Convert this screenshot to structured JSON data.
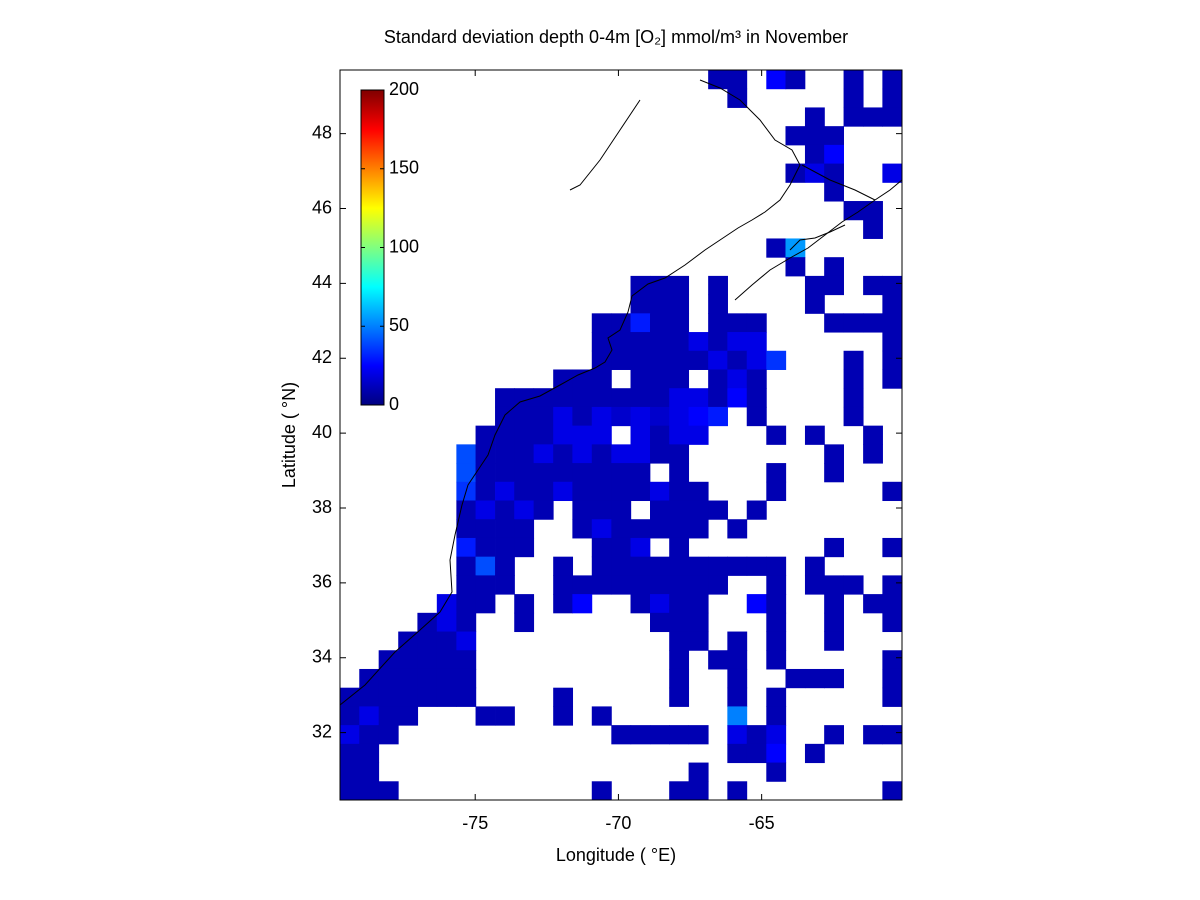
{
  "chart_data": {
    "type": "heatmap",
    "title": "Standard deviation depth 0-4m [O₂] mmol/m³ in November",
    "xlabel": "Longitude ( °E)",
    "ylabel": "Latitude ( °N)",
    "xlim": [
      -79.72,
      -60.1
    ],
    "ylim": [
      30.2,
      49.7
    ],
    "xticks": [
      -75,
      -70,
      -65
    ],
    "yticks": [
      32,
      34,
      36,
      38,
      40,
      42,
      44,
      46,
      48
    ],
    "colormap": "jet",
    "clim": [
      0,
      200
    ],
    "cticks": [
      0,
      50,
      100,
      150,
      200
    ],
    "x": [
      -79.38,
      -78.71,
      -78.03,
      -77.35,
      -76.68,
      -76.0,
      -75.32,
      -74.65,
      -73.97,
      -73.3,
      -72.62,
      -71.94,
      -71.27,
      -70.59,
      -69.91,
      -69.24,
      -68.56,
      -67.89,
      -67.21,
      -66.53,
      -65.86,
      -65.18,
      -64.5,
      -63.83,
      -63.15,
      -62.48,
      -61.8,
      -61.12,
      -60.45
    ],
    "y": [
      49.45,
      48.95,
      48.45,
      47.95,
      47.45,
      46.95,
      46.45,
      45.95,
      45.45,
      44.95,
      44.45,
      43.95,
      43.45,
      42.95,
      42.45,
      41.95,
      41.45,
      40.95,
      40.45,
      39.95,
      39.45,
      38.95,
      38.45,
      37.95,
      37.45,
      36.95,
      36.45,
      35.95,
      35.45,
      34.95,
      34.45,
      33.95,
      33.45,
      32.95,
      32.45,
      31.95,
      31.45,
      30.95,
      30.45
    ],
    "z": [
      [
        null,
        null,
        null,
        null,
        null,
        null,
        null,
        null,
        null,
        null,
        null,
        null,
        null,
        null,
        null,
        null,
        null,
        null,
        null,
        10,
        10,
        null,
        25,
        10,
        null,
        null,
        10,
        null,
        10
      ],
      [
        null,
        null,
        null,
        null,
        null,
        null,
        null,
        null,
        null,
        null,
        null,
        null,
        null,
        null,
        null,
        null,
        null,
        null,
        null,
        null,
        10,
        null,
        null,
        null,
        null,
        null,
        10,
        null,
        10
      ],
      [
        null,
        null,
        null,
        null,
        null,
        null,
        null,
        null,
        null,
        null,
        null,
        null,
        null,
        null,
        null,
        null,
        null,
        null,
        null,
        null,
        null,
        null,
        null,
        null,
        10,
        null,
        10,
        10,
        10
      ],
      [
        null,
        null,
        null,
        null,
        null,
        null,
        null,
        null,
        null,
        null,
        null,
        null,
        null,
        null,
        null,
        null,
        null,
        null,
        null,
        null,
        null,
        null,
        null,
        10,
        10,
        10,
        null,
        null,
        null
      ],
      [
        null,
        null,
        null,
        null,
        null,
        null,
        null,
        null,
        null,
        null,
        null,
        null,
        null,
        null,
        null,
        null,
        null,
        null,
        null,
        null,
        null,
        null,
        null,
        null,
        10,
        25,
        null,
        null,
        null
      ],
      [
        null,
        null,
        null,
        null,
        null,
        null,
        null,
        null,
        null,
        null,
        null,
        null,
        null,
        null,
        null,
        null,
        null,
        null,
        null,
        null,
        null,
        null,
        null,
        10,
        20,
        10,
        null,
        null,
        20
      ],
      [
        null,
        null,
        null,
        null,
        null,
        null,
        null,
        null,
        null,
        null,
        null,
        null,
        null,
        null,
        null,
        null,
        null,
        null,
        null,
        null,
        null,
        null,
        null,
        null,
        null,
        10,
        null,
        null,
        null
      ],
      [
        null,
        null,
        null,
        null,
        null,
        null,
        null,
        null,
        null,
        null,
        null,
        null,
        null,
        null,
        null,
        null,
        null,
        null,
        null,
        null,
        null,
        null,
        null,
        null,
        null,
        null,
        10,
        10,
        null
      ],
      [
        null,
        null,
        null,
        null,
        null,
        null,
        null,
        null,
        null,
        null,
        null,
        null,
        null,
        null,
        null,
        null,
        null,
        null,
        null,
        null,
        null,
        null,
        null,
        null,
        null,
        null,
        null,
        10,
        null
      ],
      [
        null,
        null,
        null,
        null,
        null,
        null,
        null,
        null,
        null,
        null,
        null,
        null,
        null,
        null,
        null,
        null,
        null,
        null,
        null,
        null,
        null,
        null,
        10,
        55,
        null,
        null,
        null,
        null,
        null
      ],
      [
        null,
        null,
        null,
        null,
        null,
        null,
        null,
        null,
        null,
        null,
        null,
        null,
        null,
        null,
        null,
        null,
        null,
        null,
        null,
        null,
        null,
        null,
        null,
        10,
        null,
        10,
        null,
        null,
        null
      ],
      [
        null,
        null,
        null,
        null,
        null,
        null,
        null,
        null,
        null,
        null,
        null,
        null,
        null,
        null,
        null,
        10,
        10,
        10,
        null,
        10,
        null,
        null,
        null,
        null,
        10,
        10,
        null,
        10,
        10
      ],
      [
        null,
        null,
        null,
        null,
        null,
        null,
        null,
        null,
        null,
        null,
        null,
        null,
        null,
        null,
        null,
        10,
        10,
        10,
        null,
        10,
        null,
        null,
        null,
        null,
        10,
        null,
        null,
        null,
        10
      ],
      [
        null,
        null,
        null,
        null,
        null,
        null,
        null,
        null,
        null,
        null,
        null,
        null,
        null,
        10,
        10,
        30,
        10,
        10,
        null,
        10,
        10,
        10,
        null,
        null,
        null,
        10,
        10,
        10,
        10
      ],
      [
        null,
        null,
        null,
        null,
        null,
        null,
        null,
        null,
        null,
        null,
        null,
        null,
        null,
        10,
        10,
        10,
        10,
        10,
        20,
        10,
        20,
        20,
        null,
        null,
        null,
        null,
        null,
        null,
        10
      ],
      [
        null,
        null,
        null,
        null,
        null,
        null,
        null,
        null,
        null,
        null,
        null,
        null,
        null,
        10,
        10,
        10,
        10,
        10,
        10,
        20,
        10,
        20,
        35,
        null,
        null,
        null,
        10,
        null,
        10
      ],
      [
        null,
        null,
        null,
        null,
        null,
        null,
        null,
        null,
        null,
        null,
        null,
        10,
        10,
        10,
        null,
        10,
        10,
        10,
        null,
        10,
        20,
        10,
        null,
        null,
        null,
        null,
        10,
        null,
        10
      ],
      [
        null,
        null,
        null,
        null,
        null,
        null,
        null,
        null,
        10,
        10,
        10,
        10,
        10,
        10,
        10,
        10,
        10,
        20,
        20,
        10,
        25,
        10,
        null,
        null,
        null,
        null,
        10,
        null,
        null
      ],
      [
        null,
        null,
        null,
        null,
        null,
        null,
        null,
        null,
        10,
        10,
        10,
        20,
        10,
        20,
        15,
        20,
        15,
        20,
        25,
        30,
        null,
        10,
        null,
        null,
        null,
        null,
        10,
        null,
        null
      ],
      [
        null,
        null,
        null,
        null,
        null,
        null,
        null,
        10,
        10,
        10,
        10,
        20,
        20,
        20,
        null,
        20,
        10,
        20,
        20,
        null,
        null,
        null,
        10,
        null,
        10,
        null,
        null,
        10,
        null
      ],
      [
        null,
        null,
        null,
        null,
        null,
        null,
        40,
        10,
        10,
        10,
        20,
        10,
        20,
        10,
        20,
        20,
        10,
        10,
        null,
        null,
        null,
        null,
        null,
        null,
        null,
        10,
        null,
        10,
        null
      ],
      [
        null,
        null,
        null,
        null,
        null,
        null,
        40,
        10,
        10,
        10,
        10,
        10,
        10,
        10,
        10,
        10,
        null,
        10,
        null,
        null,
        null,
        null,
        10,
        null,
        null,
        10,
        null,
        null,
        null
      ],
      [
        null,
        null,
        null,
        null,
        null,
        null,
        35,
        10,
        20,
        10,
        10,
        20,
        10,
        10,
        10,
        10,
        20,
        10,
        10,
        null,
        null,
        null,
        10,
        null,
        null,
        null,
        null,
        null,
        10
      ],
      [
        null,
        null,
        null,
        null,
        null,
        null,
        10,
        20,
        10,
        20,
        10,
        null,
        10,
        10,
        10,
        null,
        10,
        10,
        10,
        10,
        null,
        10,
        null,
        null,
        null,
        null,
        null,
        null,
        null
      ],
      [
        null,
        null,
        null,
        null,
        null,
        null,
        10,
        10,
        10,
        10,
        null,
        null,
        10,
        20,
        10,
        10,
        10,
        10,
        10,
        null,
        10,
        null,
        null,
        null,
        null,
        null,
        null,
        null,
        null
      ],
      [
        null,
        null,
        null,
        null,
        null,
        null,
        30,
        10,
        10,
        10,
        null,
        null,
        null,
        10,
        10,
        20,
        null,
        10,
        null,
        null,
        null,
        null,
        null,
        null,
        null,
        10,
        null,
        null,
        10
      ],
      [
        null,
        null,
        null,
        null,
        null,
        null,
        10,
        40,
        10,
        null,
        null,
        10,
        null,
        10,
        10,
        10,
        10,
        10,
        10,
        10,
        10,
        10,
        10,
        null,
        10,
        null,
        null,
        null,
        null
      ],
      [
        null,
        null,
        null,
        null,
        null,
        null,
        10,
        10,
        10,
        null,
        null,
        10,
        10,
        10,
        10,
        10,
        10,
        10,
        10,
        10,
        null,
        null,
        10,
        null,
        10,
        10,
        10,
        null,
        10
      ],
      [
        null,
        null,
        null,
        null,
        null,
        20,
        10,
        10,
        null,
        10,
        null,
        10,
        25,
        null,
        null,
        10,
        20,
        10,
        10,
        null,
        null,
        25,
        10,
        null,
        null,
        10,
        null,
        10,
        10
      ],
      [
        null,
        null,
        null,
        null,
        10,
        20,
        10,
        null,
        null,
        10,
        null,
        null,
        null,
        null,
        null,
        null,
        10,
        10,
        10,
        null,
        null,
        null,
        10,
        null,
        null,
        10,
        null,
        null,
        10
      ],
      [
        null,
        null,
        null,
        10,
        10,
        10,
        20,
        null,
        null,
        null,
        null,
        null,
        null,
        null,
        null,
        null,
        null,
        10,
        10,
        null,
        10,
        null,
        10,
        null,
        null,
        10,
        null,
        null,
        null
      ],
      [
        null,
        null,
        10,
        10,
        10,
        10,
        10,
        null,
        null,
        null,
        null,
        null,
        null,
        null,
        null,
        null,
        null,
        10,
        null,
        10,
        10,
        null,
        10,
        null,
        null,
        null,
        null,
        null,
        10
      ],
      [
        null,
        10,
        10,
        10,
        10,
        10,
        10,
        null,
        null,
        null,
        null,
        null,
        null,
        null,
        null,
        null,
        null,
        10,
        null,
        null,
        10,
        null,
        null,
        10,
        10,
        10,
        null,
        null,
        10
      ],
      [
        10,
        10,
        10,
        10,
        10,
        10,
        10,
        null,
        null,
        null,
        null,
        10,
        null,
        null,
        null,
        null,
        null,
        10,
        null,
        null,
        10,
        null,
        10,
        null,
        null,
        null,
        null,
        null,
        10
      ],
      [
        10,
        20,
        10,
        10,
        null,
        null,
        null,
        10,
        10,
        null,
        null,
        10,
        null,
        10,
        null,
        null,
        null,
        null,
        null,
        null,
        50,
        null,
        10,
        null,
        null,
        null,
        null,
        null,
        null
      ],
      [
        20,
        10,
        10,
        null,
        null,
        null,
        null,
        null,
        null,
        null,
        null,
        null,
        null,
        null,
        10,
        10,
        10,
        10,
        10,
        null,
        20,
        10,
        20,
        null,
        null,
        10,
        null,
        10,
        10
      ],
      [
        10,
        10,
        null,
        null,
        null,
        null,
        null,
        null,
        null,
        null,
        null,
        null,
        null,
        null,
        null,
        null,
        null,
        null,
        null,
        null,
        10,
        10,
        25,
        null,
        10,
        null,
        null,
        null,
        null
      ],
      [
        10,
        10,
        null,
        null,
        null,
        null,
        null,
        null,
        null,
        null,
        null,
        null,
        null,
        null,
        null,
        null,
        null,
        null,
        10,
        null,
        null,
        null,
        10,
        null,
        null,
        null,
        null,
        null,
        null
      ],
      [
        10,
        10,
        10,
        null,
        null,
        null,
        null,
        null,
        null,
        null,
        null,
        null,
        null,
        10,
        null,
        null,
        null,
        10,
        10,
        null,
        10,
        null,
        null,
        null,
        null,
        null,
        null,
        null,
        10
      ]
    ]
  }
}
